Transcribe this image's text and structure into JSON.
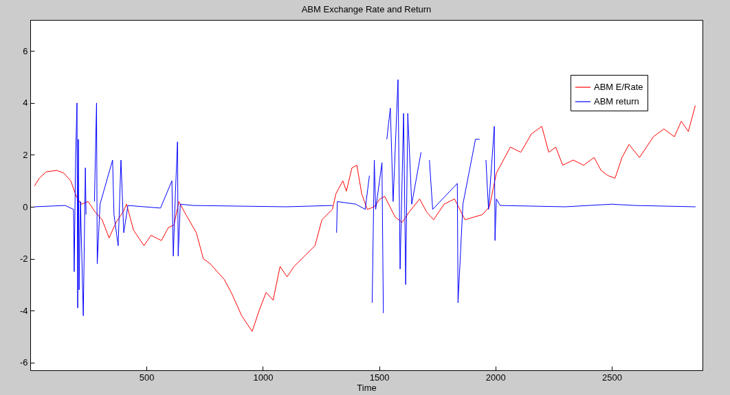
{
  "chart_data": {
    "type": "line",
    "title": "ABM Exchange Rate and Return",
    "xlabel": "Time",
    "xlim": [
      0,
      2890
    ],
    "ylim": [
      -6.3,
      7.2
    ],
    "xticks": [
      500,
      1000,
      1500,
      2000,
      2500
    ],
    "yticks": [
      -6,
      -4,
      -2,
      0,
      2,
      4,
      6
    ],
    "grid": false,
    "legend": "top right",
    "series": [
      {
        "name": "ABM E/Rate",
        "color": "#ff0000",
        "x": [
          18,
          39,
          69,
          114,
          144,
          174,
          198,
          219,
          249,
          279,
          309,
          339,
          369,
          399,
          414,
          444,
          489,
          519,
          564,
          594,
          618,
          639,
          669,
          714,
          744,
          774,
          834,
          864,
          909,
          954,
          984,
          1014,
          1044,
          1074,
          1104,
          1134,
          1179,
          1224,
          1254,
          1299,
          1314,
          1344,
          1359,
          1383,
          1404,
          1425,
          1449,
          1479,
          1503,
          1524,
          1569,
          1599,
          1629,
          1674,
          1704,
          1734,
          1779,
          1824,
          1869,
          1944,
          1974,
          2004,
          2064,
          2109,
          2154,
          2199,
          2229,
          2259,
          2289,
          2334,
          2379,
          2424,
          2454,
          2484,
          2514,
          2544,
          2574,
          2619,
          2649,
          2679,
          2724,
          2769,
          2799,
          2829,
          2859
        ],
        "values": [
          0.8,
          1.1,
          1.35,
          1.4,
          1.3,
          1.0,
          0.4,
          0.1,
          0.2,
          -0.2,
          -0.5,
          -1.2,
          -0.6,
          -0.2,
          0.1,
          -0.9,
          -1.5,
          -1.1,
          -1.3,
          -0.8,
          -0.7,
          0.2,
          -0.3,
          -1.0,
          -2.0,
          -2.2,
          -2.8,
          -3.3,
          -4.2,
          -4.8,
          -4.0,
          -3.3,
          -3.6,
          -2.3,
          -2.7,
          -2.3,
          -1.9,
          -1.5,
          -0.5,
          -0.1,
          0.5,
          1.0,
          0.6,
          1.5,
          1.6,
          0.5,
          -0.1,
          0.0,
          0.3,
          0.4,
          -0.4,
          -0.6,
          -0.2,
          0.3,
          -0.2,
          -0.5,
          0.1,
          0.3,
          -0.5,
          -0.3,
          0.0,
          1.3,
          2.3,
          2.1,
          2.8,
          3.1,
          2.1,
          2.3,
          1.6,
          1.8,
          1.6,
          1.9,
          1.4,
          1.2,
          1.1,
          1.9,
          2.4,
          1.9,
          2.3,
          2.7,
          3.0,
          2.7,
          3.3,
          2.9,
          3.9
        ]
      },
      {
        "name": "ABM return",
        "color": "#0000ff",
        "x": [
          18,
          150,
          186,
          189,
          195,
          201,
          204,
          207,
          210,
          216,
          228,
          237,
          240,
          258,
          270,
          276,
          285,
          288,
          300,
          354,
          360,
          378,
          390,
          402,
          420,
          560,
          609,
          615,
          624,
          633,
          636,
          645,
          700,
          1100,
          1300,
          1314,
          1317,
          1320,
          1400,
          1440,
          1458,
          1464,
          1470,
          1479,
          1485,
          1512,
          1518,
          1524,
          1533,
          1548,
          1560,
          1581,
          1590,
          1605,
          1614,
          1623,
          1640,
          1680,
          1701,
          1716,
          1730,
          1836,
          1839,
          1860,
          1914,
          1932,
          1935,
          1938,
          1944,
          1959,
          1970,
          1995,
          1998,
          2004,
          2020,
          2300,
          2500,
          2600,
          2860
        ],
        "values": [
          0,
          0.05,
          -0.1,
          -2.5,
          1.9,
          4.0,
          -3.9,
          2.6,
          -3.2,
          0.2,
          -4.2,
          1.5,
          -0.3,
          null,
          null,
          0.2,
          4.0,
          -2.2,
          0.1,
          1.8,
          -0.3,
          -1.5,
          1.8,
          -1.0,
          0.05,
          -0.05,
          1.0,
          -1.9,
          0.5,
          2.5,
          -1.9,
          0.1,
          0.05,
          0,
          0.05,
          null,
          -1.0,
          0.2,
          0.1,
          -0.1,
          1.2,
          null,
          -3.7,
          1.8,
          -0.1,
          1.7,
          -4.1,
          null,
          2.6,
          3.8,
          0.2,
          4.9,
          -2.4,
          3.6,
          -3.0,
          3.6,
          0.1,
          2.1,
          null,
          1.8,
          -0.1,
          0.9,
          -3.7,
          0.1,
          2.6,
          2.6,
          null,
          null,
          null,
          1.8,
          -0.1,
          3.1,
          -1.3,
          0.3,
          0.05,
          0,
          0.1,
          0.05,
          0
        ]
      }
    ]
  }
}
